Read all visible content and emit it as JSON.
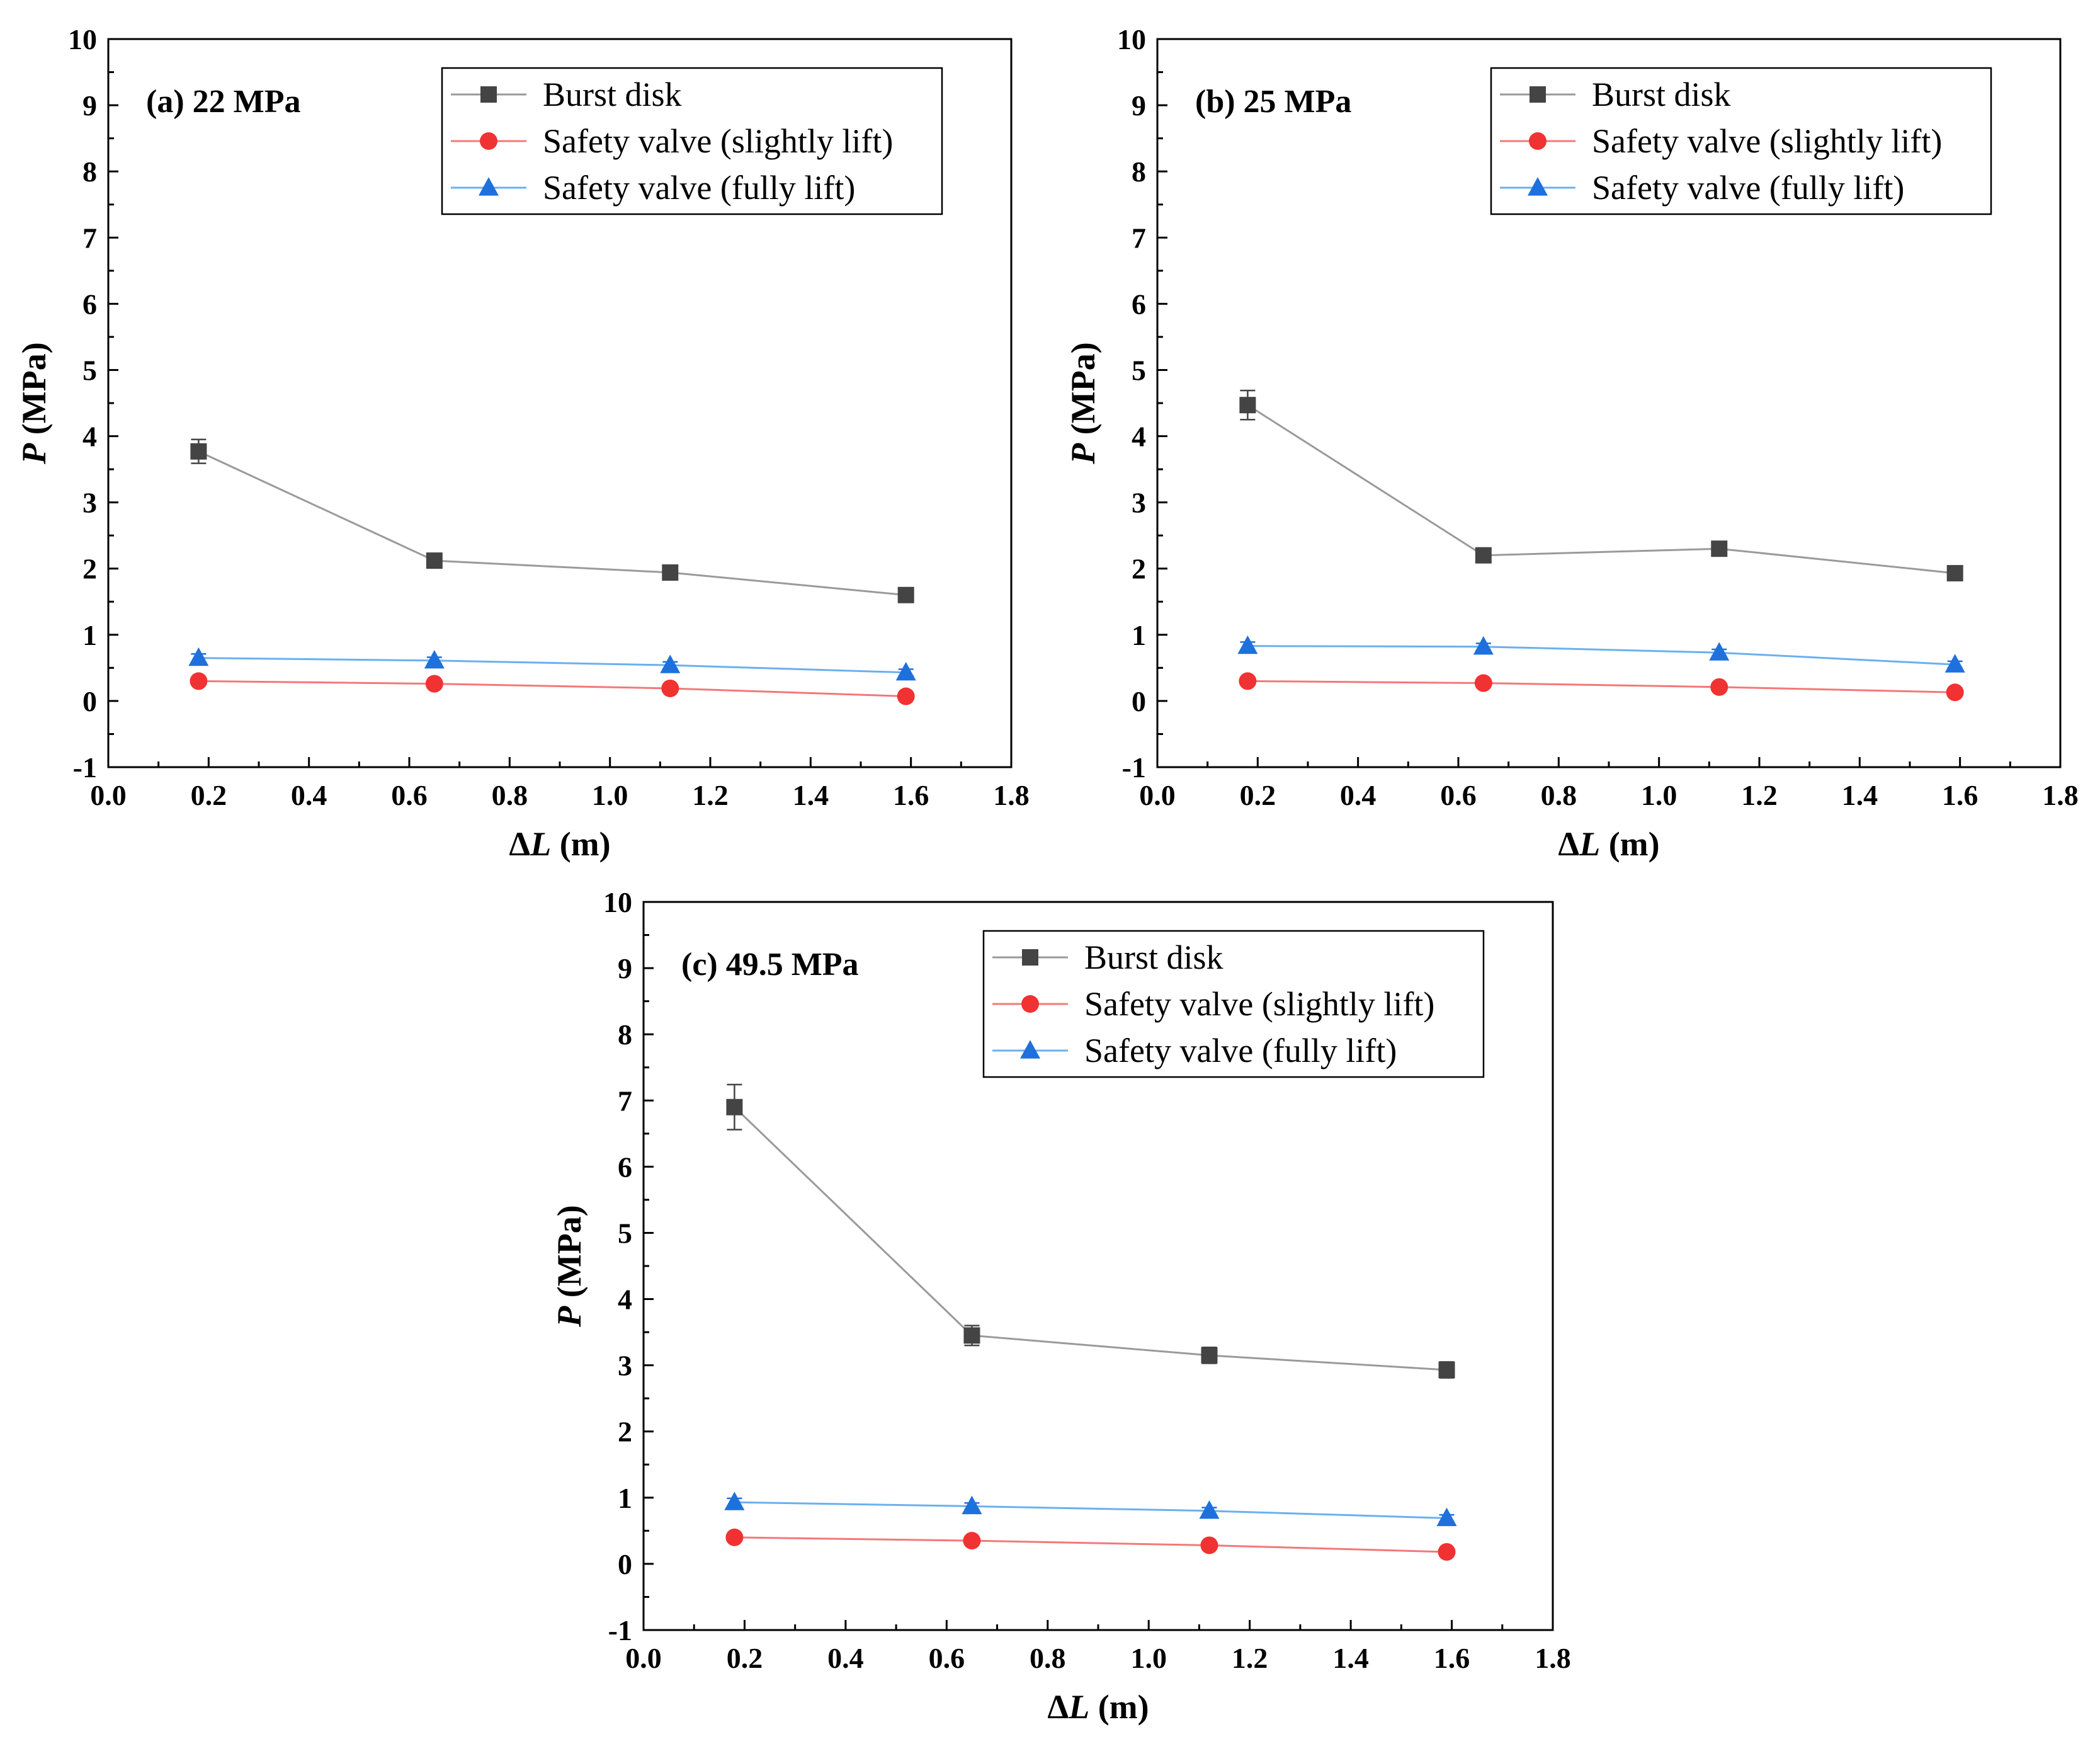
{
  "chart_data": [
    {
      "type": "line",
      "title": "(a) 22 MPa",
      "xlabel_prefix": "Δ",
      "xlabel_var": "L",
      "xlabel_unit": " (m)",
      "ylabel_var": "P",
      "ylabel_unit": " (MPa)",
      "xlim": [
        0.0,
        1.8
      ],
      "ylim": [
        -1,
        10
      ],
      "xticks": [
        "0.0",
        "0.2",
        "0.4",
        "0.6",
        "0.8",
        "1.0",
        "1.2",
        "1.4",
        "1.6",
        "1.8"
      ],
      "yticks": [
        "-1",
        "0",
        "1",
        "2",
        "3",
        "4",
        "5",
        "6",
        "7",
        "8",
        "9",
        "10"
      ],
      "legend_position": "top-right",
      "grid": false,
      "x": [
        0.18,
        0.65,
        1.12,
        1.59
      ],
      "series": [
        {
          "name": "Burst disk",
          "marker": "square",
          "color": "#444444",
          "line_color": "#9a9a9a",
          "values": [
            3.77,
            2.12,
            1.94,
            1.6
          ],
          "errors": [
            0.18,
            0.06,
            0.06,
            0.06
          ]
        },
        {
          "name": "Safety valve (slightly lift)",
          "marker": "circle",
          "color": "#f03232",
          "line_color": "#f47878",
          "values": [
            0.3,
            0.26,
            0.19,
            0.07
          ],
          "errors": [
            0.05,
            0.04,
            0.04,
            0.04
          ]
        },
        {
          "name": "Safety valve (fully lift)",
          "marker": "triangle",
          "color": "#1e70dc",
          "line_color": "#6ab0f0",
          "values": [
            0.65,
            0.61,
            0.54,
            0.43
          ],
          "errors": [
            0.06,
            0.05,
            0.05,
            0.05
          ]
        }
      ]
    },
    {
      "type": "line",
      "title": "(b) 25 MPa",
      "xlabel_prefix": "Δ",
      "xlabel_var": "L",
      "xlabel_unit": " (m)",
      "ylabel_var": "P",
      "ylabel_unit": " (MPa)",
      "xlim": [
        0.0,
        1.8
      ],
      "ylim": [
        -1,
        10
      ],
      "xticks": [
        "0.0",
        "0.2",
        "0.4",
        "0.6",
        "0.8",
        "1.0",
        "1.2",
        "1.4",
        "1.6",
        "1.8"
      ],
      "yticks": [
        "-1",
        "0",
        "1",
        "2",
        "3",
        "4",
        "5",
        "6",
        "7",
        "8",
        "9",
        "10"
      ],
      "legend_position": "top-right",
      "grid": false,
      "x": [
        0.18,
        0.65,
        1.12,
        1.59
      ],
      "series": [
        {
          "name": "Burst disk",
          "marker": "square",
          "color": "#444444",
          "line_color": "#9a9a9a",
          "values": [
            4.47,
            2.2,
            2.3,
            1.93
          ],
          "errors": [
            0.22,
            0.06,
            0.06,
            0.06
          ]
        },
        {
          "name": "Safety valve (slightly lift)",
          "marker": "circle",
          "color": "#f03232",
          "line_color": "#f47878",
          "values": [
            0.3,
            0.27,
            0.21,
            0.13
          ],
          "errors": [
            0.05,
            0.04,
            0.04,
            0.04
          ]
        },
        {
          "name": "Safety valve (fully lift)",
          "marker": "triangle",
          "color": "#1e70dc",
          "line_color": "#6ab0f0",
          "values": [
            0.83,
            0.82,
            0.73,
            0.55
          ],
          "errors": [
            0.06,
            0.05,
            0.05,
            0.05
          ]
        }
      ]
    },
    {
      "type": "line",
      "title": "(c) 49.5 MPa",
      "xlabel_prefix": "Δ",
      "xlabel_var": "L",
      "xlabel_unit": " (m)",
      "ylabel_var": "P",
      "ylabel_unit": " (MPa)",
      "xlim": [
        0.0,
        1.8
      ],
      "ylim": [
        -1,
        10
      ],
      "xticks": [
        "0.0",
        "0.2",
        "0.4",
        "0.6",
        "0.8",
        "1.0",
        "1.2",
        "1.4",
        "1.6",
        "1.8"
      ],
      "yticks": [
        "-1",
        "0",
        "1",
        "2",
        "3",
        "4",
        "5",
        "6",
        "7",
        "8",
        "9",
        "10"
      ],
      "legend_position": "top-right",
      "grid": false,
      "x": [
        0.18,
        0.65,
        1.12,
        1.59
      ],
      "series": [
        {
          "name": "Burst disk",
          "marker": "square",
          "color": "#444444",
          "line_color": "#9a9a9a",
          "values": [
            6.9,
            3.45,
            3.15,
            2.93
          ],
          "errors": [
            0.34,
            0.15,
            0.12,
            0.12
          ]
        },
        {
          "name": "Safety valve (slightly lift)",
          "marker": "circle",
          "color": "#f03232",
          "line_color": "#f47878",
          "values": [
            0.4,
            0.35,
            0.28,
            0.18
          ],
          "errors": [
            0.05,
            0.04,
            0.04,
            0.04
          ]
        },
        {
          "name": "Safety valve (fully lift)",
          "marker": "triangle",
          "color": "#1e70dc",
          "line_color": "#6ab0f0",
          "values": [
            0.93,
            0.87,
            0.8,
            0.69
          ],
          "errors": [
            0.06,
            0.05,
            0.05,
            0.05
          ]
        }
      ]
    }
  ]
}
